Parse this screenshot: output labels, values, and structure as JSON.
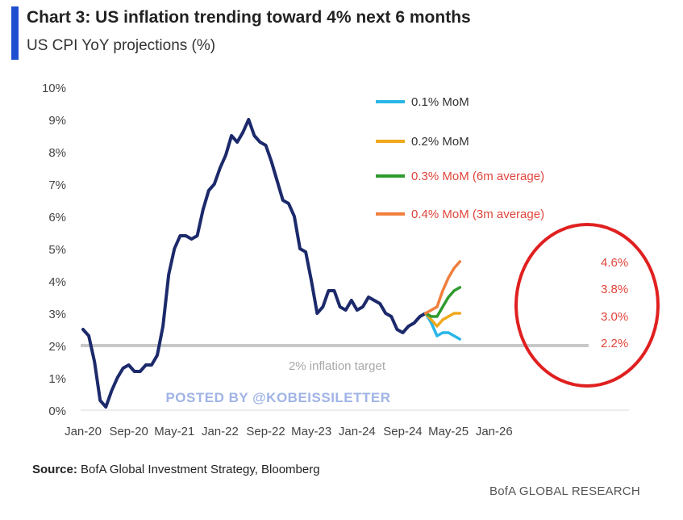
{
  "header": {
    "title": "Chart 3: US inflation trending toward 4% next 6 months",
    "subtitle": "US CPI YoY projections (%)"
  },
  "footer": {
    "source_label": "Source:",
    "source_text": "BofA Global Investment Strategy, Bloomberg",
    "brand": "BofA GLOBAL RESEARCH"
  },
  "watermark": "POSTED BY @KOBEISSILETTER",
  "colors": {
    "history": "#1c2a6b",
    "s01": "#29b6e6",
    "s02": "#f0a81c",
    "s03": "#2e9a2e",
    "s04": "#f07f3c",
    "target": "#c8c8c8",
    "annotation_text": "#e0463c",
    "circle": "#e02020",
    "watermark": "#9fb4e6"
  },
  "chart_data": {
    "type": "line",
    "title": "Chart 3: US inflation trending toward 4% next 6 months",
    "subtitle": "US CPI YoY projections (%)",
    "xlabel": "",
    "ylabel": "",
    "ylim": [
      0,
      10
    ],
    "yticks": [
      "0%",
      "1%",
      "2%",
      "3%",
      "4%",
      "5%",
      "6%",
      "7%",
      "8%",
      "9%",
      "10%"
    ],
    "xticks": [
      "Jan-20",
      "Sep-20",
      "May-21",
      "Jan-22",
      "Sep-22",
      "May-23",
      "Jan-24",
      "Sep-24",
      "May-25",
      "Jan-26"
    ],
    "grid": false,
    "legend_position": "top-right",
    "reference_line": {
      "value": 2,
      "label": "2% inflation target"
    },
    "history": {
      "x": [
        "2020-01",
        "2020-02",
        "2020-03",
        "2020-04",
        "2020-05",
        "2020-06",
        "2020-07",
        "2020-08",
        "2020-09",
        "2020-10",
        "2020-11",
        "2020-12",
        "2021-01",
        "2021-02",
        "2021-03",
        "2021-04",
        "2021-05",
        "2021-06",
        "2021-07",
        "2021-08",
        "2021-09",
        "2021-10",
        "2021-11",
        "2021-12",
        "2022-01",
        "2022-02",
        "2022-03",
        "2022-04",
        "2022-05",
        "2022-06",
        "2022-07",
        "2022-08",
        "2022-09",
        "2022-10",
        "2022-11",
        "2022-12",
        "2023-01",
        "2023-02",
        "2023-03",
        "2023-04",
        "2023-05",
        "2023-06",
        "2023-07",
        "2023-08",
        "2023-09",
        "2023-10",
        "2023-11",
        "2023-12",
        "2024-01",
        "2024-02",
        "2024-03",
        "2024-04",
        "2024-05",
        "2024-06",
        "2024-07",
        "2024-08",
        "2024-09",
        "2024-10",
        "2024-11",
        "2024-12",
        "2025-01"
      ],
      "values": [
        2.5,
        2.3,
        1.5,
        0.3,
        0.1,
        0.6,
        1.0,
        1.3,
        1.4,
        1.2,
        1.2,
        1.4,
        1.4,
        1.7,
        2.6,
        4.2,
        5.0,
        5.4,
        5.4,
        5.3,
        5.4,
        6.2,
        6.8,
        7.0,
        7.5,
        7.9,
        8.5,
        8.3,
        8.6,
        9.0,
        8.5,
        8.3,
        8.2,
        7.7,
        7.1,
        6.5,
        6.4,
        6.0,
        5.0,
        4.9,
        4.0,
        3.0,
        3.2,
        3.7,
        3.7,
        3.2,
        3.1,
        3.4,
        3.1,
        3.2,
        3.5,
        3.4,
        3.3,
        3.0,
        2.9,
        2.5,
        2.4,
        2.6,
        2.7,
        2.9,
        3.0
      ]
    },
    "series": [
      {
        "name": "0.1% MoM",
        "color": "#29b6e6",
        "x": [
          "2025-01",
          "2025-02",
          "2025-03",
          "2025-04",
          "2025-05",
          "2025-06",
          "2025-07"
        ],
        "values": [
          3.0,
          2.7,
          2.3,
          2.4,
          2.4,
          2.3,
          2.2
        ],
        "end_label": "2.2%"
      },
      {
        "name": "0.2% MoM",
        "color": "#f0a81c",
        "x": [
          "2025-01",
          "2025-02",
          "2025-03",
          "2025-04",
          "2025-05",
          "2025-06",
          "2025-07"
        ],
        "values": [
          3.0,
          2.8,
          2.6,
          2.8,
          2.9,
          3.0,
          3.0
        ],
        "end_label": "3.0%"
      },
      {
        "name": "0.3% MoM (6m average)",
        "color": "#2e9a2e",
        "x": [
          "2025-01",
          "2025-02",
          "2025-03",
          "2025-04",
          "2025-05",
          "2025-06",
          "2025-07"
        ],
        "values": [
          3.0,
          2.9,
          2.9,
          3.2,
          3.5,
          3.7,
          3.8
        ],
        "end_label": "3.8%"
      },
      {
        "name": "0.4% MoM (3m average)",
        "color": "#f07f3c",
        "x": [
          "2025-01",
          "2025-02",
          "2025-03",
          "2025-04",
          "2025-05",
          "2025-06",
          "2025-07"
        ],
        "values": [
          3.0,
          3.1,
          3.2,
          3.7,
          4.1,
          4.4,
          4.6
        ],
        "end_label": "4.6%"
      }
    ]
  }
}
